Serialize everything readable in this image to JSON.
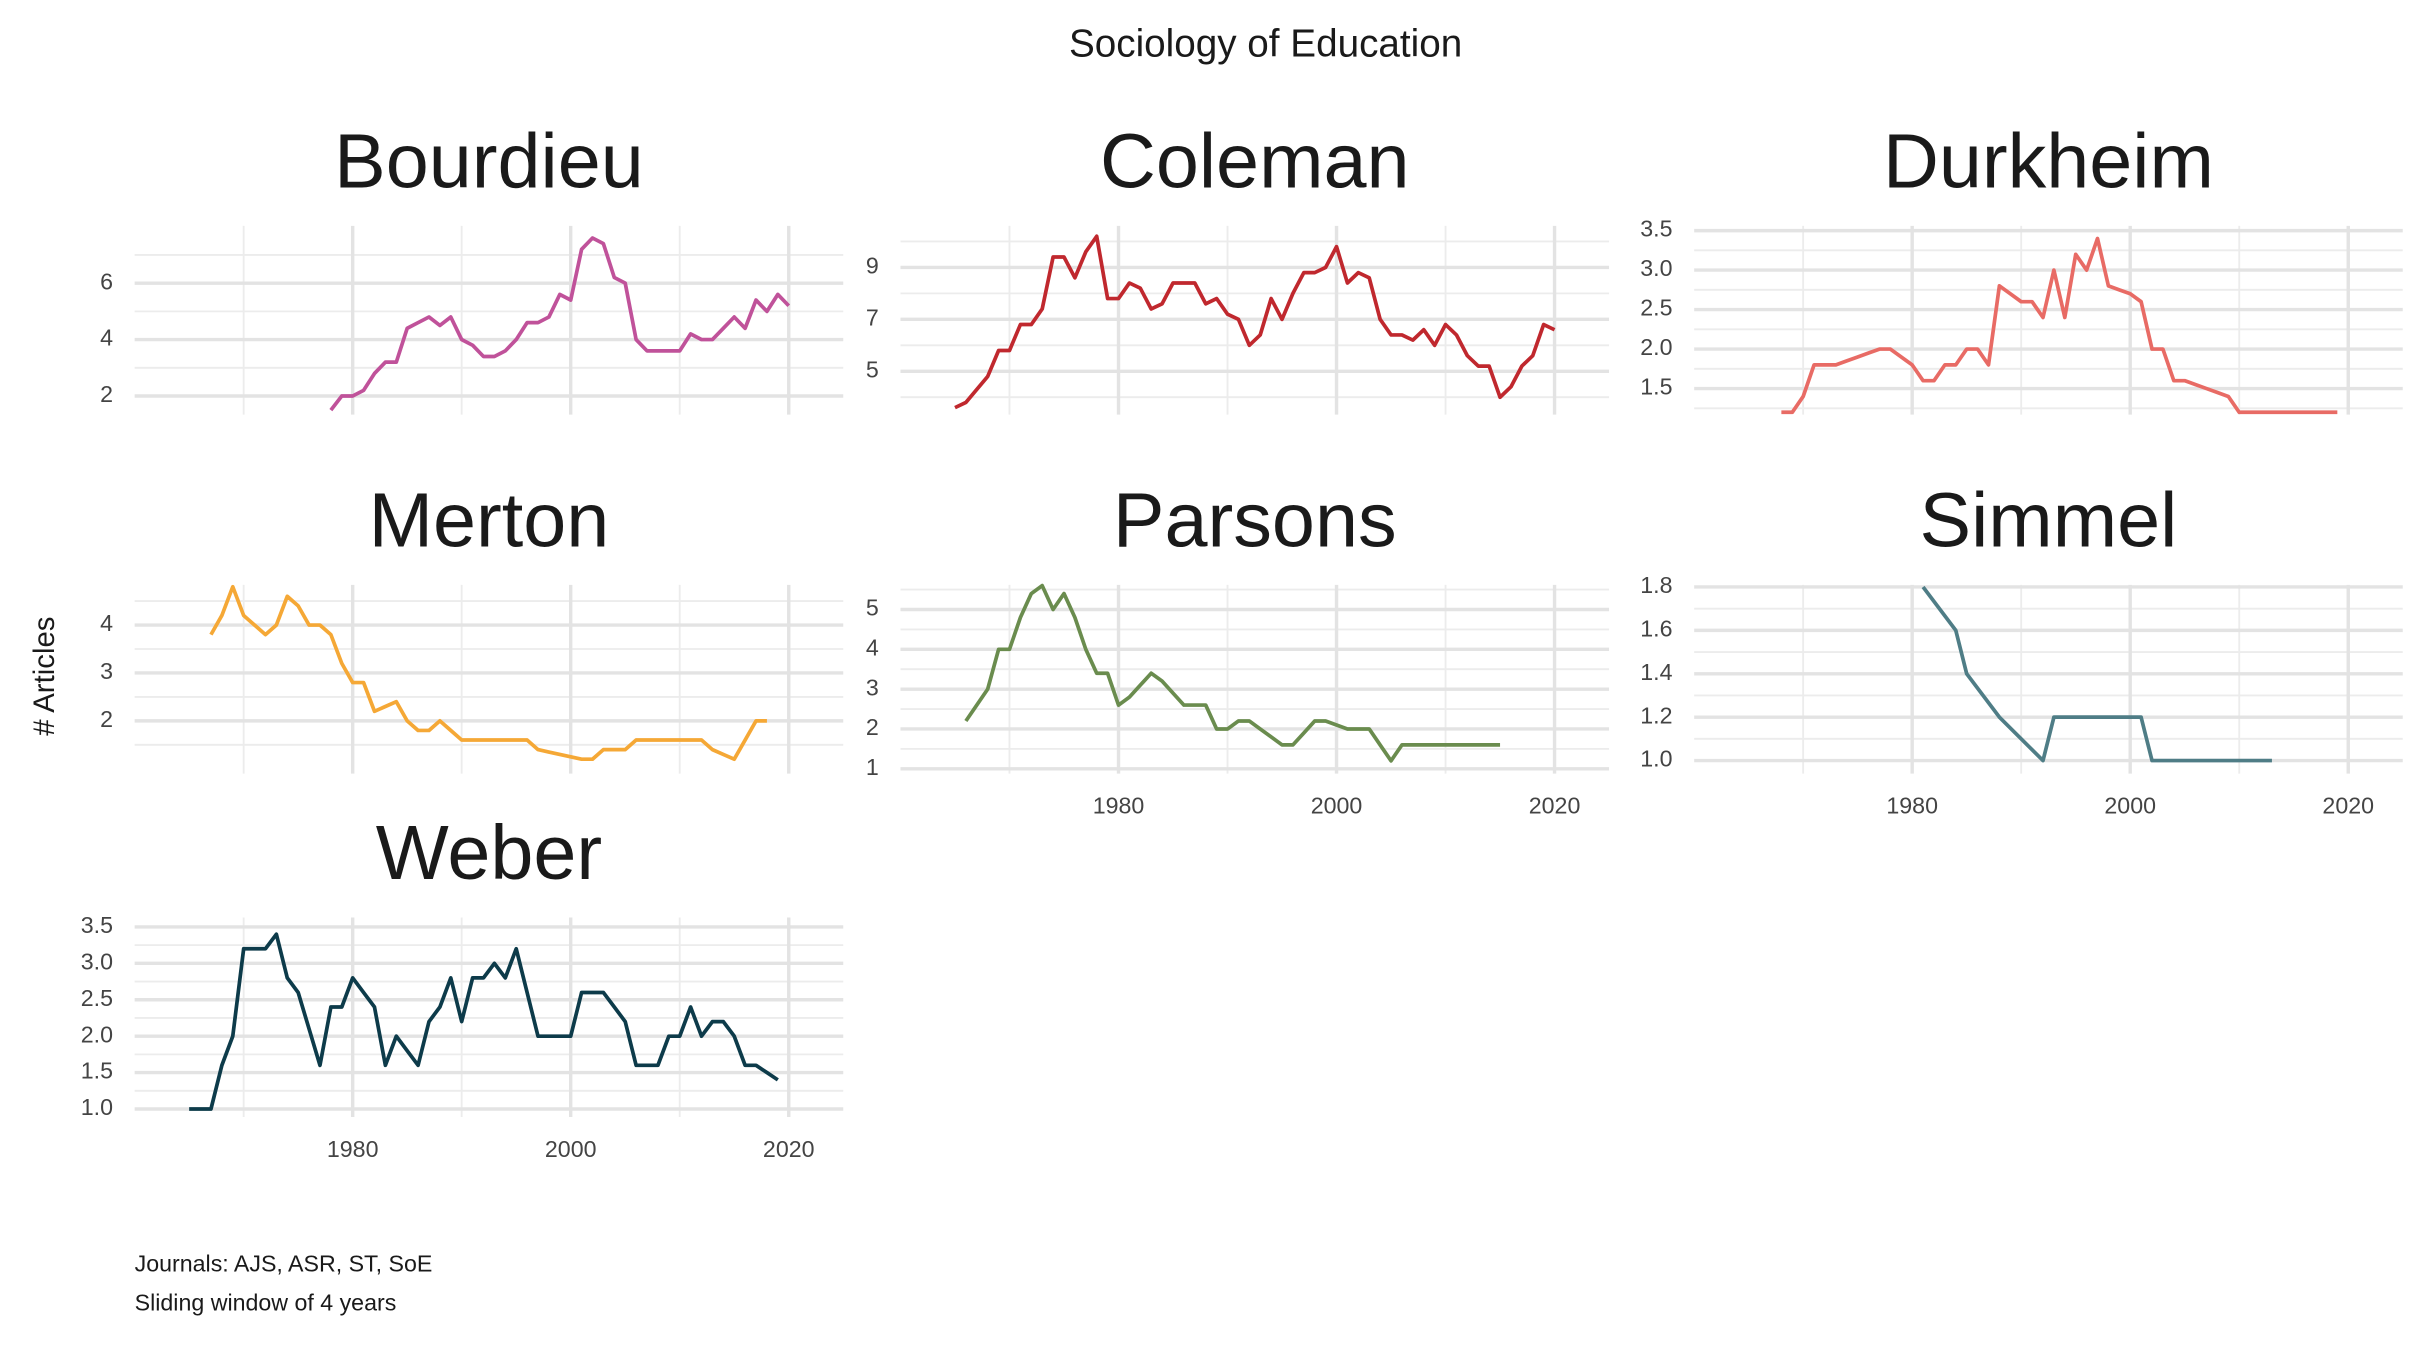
{
  "title": "Sociology of Education",
  "y_label": "# Articles",
  "caption": [
    "Journals: AJS, ASR, ST, SoE",
    "Sliding window of 4 years"
  ],
  "chart_data": [
    {
      "type": "line",
      "title": "Bourdieu",
      "color": "#c0529a",
      "grid": true,
      "x": [
        1978,
        1979,
        1980,
        1981,
        1982,
        1983,
        1984,
        1985,
        1986,
        1987,
        1988,
        1989,
        1990,
        1991,
        1992,
        1993,
        1994,
        1995,
        1996,
        1997,
        1998,
        1999,
        2000,
        2001,
        2002,
        2003,
        2004,
        2005,
        2006,
        2007,
        2008,
        2009,
        2010,
        2011,
        2012,
        2013,
        2014,
        2015,
        2016,
        2017,
        2018,
        2019,
        2020
      ],
      "values": [
        1.5,
        2,
        2,
        2.2,
        2.8,
        3.2,
        3.2,
        4.4,
        4.6,
        4.8,
        4.5,
        4.8,
        4,
        3.8,
        3.4,
        3.4,
        3.6,
        4,
        4.6,
        4.6,
        4.8,
        5.6,
        5.4,
        7.2,
        7.6,
        7.4,
        6.2,
        6,
        4,
        3.6,
        3.6,
        3.6,
        3.6,
        4.2,
        4,
        4,
        4.4,
        4.8,
        4.4,
        5.4,
        5,
        5.6,
        5.2
      ],
      "xlim": [
        1960,
        2025
      ],
      "ylim": [
        1.34,
        8.03
      ],
      "xticks": [
        1980,
        2000,
        2020
      ],
      "yticks": [
        2,
        4,
        6
      ]
    },
    {
      "type": "line",
      "title": "Coleman",
      "color": "#c0282e",
      "grid": true,
      "x": [
        1965,
        1966,
        1967,
        1968,
        1969,
        1970,
        1971,
        1972,
        1973,
        1974,
        1975,
        1976,
        1977,
        1978,
        1979,
        1980,
        1981,
        1982,
        1983,
        1984,
        1985,
        1986,
        1987,
        1988,
        1989,
        1990,
        1991,
        1992,
        1993,
        1994,
        1995,
        1996,
        1997,
        1998,
        1999,
        2000,
        2001,
        2002,
        2003,
        2004,
        2005,
        2006,
        2007,
        2008,
        2009,
        2010,
        2011,
        2012,
        2013,
        2014,
        2015,
        2016,
        2017,
        2018,
        2019,
        2020
      ],
      "values": [
        3.6,
        3.8,
        4.3,
        4.8,
        5.8,
        5.8,
        6.8,
        6.8,
        7.4,
        9.4,
        9.4,
        8.6,
        9.6,
        10.2,
        7.8,
        7.8,
        8.4,
        8.2,
        7.4,
        7.6,
        8.4,
        8.4,
        8.4,
        7.6,
        7.8,
        7.2,
        7,
        6,
        6.4,
        7.8,
        7,
        8,
        8.8,
        8.8,
        9,
        9.8,
        8.4,
        8.8,
        8.6,
        7,
        6.4,
        6.4,
        6.2,
        6.6,
        6,
        6.8,
        6.4,
        5.6,
        5.2,
        5.2,
        4,
        4.4,
        5.2,
        5.6,
        6.8,
        6.6
      ],
      "xlim": [
        1960,
        2025
      ],
      "ylim": [
        3.33,
        10.6
      ],
      "xticks": [
        1980,
        2000,
        2020
      ],
      "yticks": [
        5,
        7,
        9
      ]
    },
    {
      "type": "line",
      "title": "Durkheim",
      "color": "#e86b65",
      "grid": true,
      "x": [
        1968,
        1969,
        1970,
        1971,
        1972,
        1973,
        1974,
        1975,
        1976,
        1977,
        1978,
        1979,
        1980,
        1981,
        1982,
        1983,
        1984,
        1985,
        1986,
        1987,
        1988,
        1989,
        1990,
        1991,
        1992,
        1993,
        1994,
        1995,
        1996,
        1997,
        1998,
        1999,
        2000,
        2001,
        2002,
        2003,
        2004,
        2005,
        2006,
        2007,
        2008,
        2009,
        2010,
        2011,
        2012,
        2013,
        2014,
        2015,
        2016,
        2017,
        2018,
        2019
      ],
      "values": [
        1.2,
        1.2,
        1.4,
        1.8,
        1.8,
        1.8,
        1.85,
        1.9,
        1.95,
        2,
        2,
        1.9,
        1.8,
        1.6,
        1.6,
        1.8,
        1.8,
        2,
        2,
        1.8,
        2.8,
        2.7,
        2.6,
        2.6,
        2.4,
        3,
        2.4,
        3.2,
        3,
        3.4,
        2.8,
        2.75,
        2.7,
        2.6,
        2,
        2,
        1.6,
        1.6,
        1.55,
        1.5,
        1.45,
        1.4,
        1.2,
        1.2,
        1.2,
        1.2,
        1.2,
        1.2,
        1.2,
        1.2,
        1.2,
        1.2
      ],
      "xlim": [
        1960,
        2025
      ],
      "ylim": [
        1.17,
        3.56
      ],
      "xticks": [
        1980,
        2000,
        2020
      ],
      "yticks": [
        1.5,
        {
          "value": 2,
          "label": "2.0"
        },
        2.5,
        {
          "value": 3,
          "label": "3.0"
        },
        3.5
      ]
    },
    {
      "type": "line",
      "title": "Merton",
      "color": "#f5a836",
      "grid": true,
      "x": [
        1967,
        1968,
        1969,
        1970,
        1971,
        1972,
        1973,
        1974,
        1975,
        1976,
        1977,
        1978,
        1979,
        1980,
        1981,
        1982,
        1983,
        1984,
        1985,
        1986,
        1987,
        1988,
        1989,
        1990,
        1991,
        1992,
        1993,
        1994,
        1995,
        1996,
        1997,
        1998,
        1999,
        2000,
        2001,
        2002,
        2003,
        2004,
        2005,
        2006,
        2007,
        2008,
        2009,
        2010,
        2011,
        2012,
        2013,
        2014,
        2015,
        2016,
        2017,
        2018
      ],
      "values": [
        3.8,
        4.2,
        4.8,
        4.2,
        4,
        3.8,
        4,
        4.6,
        4.4,
        4,
        4,
        3.8,
        3.2,
        2.8,
        2.8,
        2.2,
        2.3,
        2.4,
        2,
        1.8,
        1.8,
        2,
        1.8,
        1.6,
        1.6,
        1.6,
        1.6,
        1.6,
        1.6,
        1.6,
        1.4,
        1.35,
        1.3,
        1.25,
        1.2,
        1.2,
        1.4,
        1.4,
        1.4,
        1.6,
        1.6,
        1.6,
        1.6,
        1.6,
        1.6,
        1.6,
        1.4,
        1.3,
        1.2,
        1.6,
        2,
        2
      ],
      "xlim": [
        1960,
        2025
      ],
      "ylim": [
        0.9,
        4.84
      ],
      "xticks": [
        1980,
        2000,
        2020
      ],
      "yticks": [
        2,
        3,
        4
      ]
    },
    {
      "type": "line",
      "title": "Parsons",
      "color": "#6a8c4e",
      "grid": true,
      "x": [
        1966,
        1967,
        1968,
        1969,
        1970,
        1971,
        1972,
        1973,
        1974,
        1975,
        1976,
        1977,
        1978,
        1979,
        1980,
        1981,
        1982,
        1983,
        1984,
        1985,
        1986,
        1987,
        1988,
        1989,
        1990,
        1991,
        1992,
        1993,
        1994,
        1995,
        1996,
        1997,
        1998,
        1999,
        2000,
        2001,
        2002,
        2003,
        2004,
        2005,
        2006,
        2007,
        2008,
        2009,
        2010,
        2011,
        2012,
        2013,
        2014,
        2015
      ],
      "values": [
        2.2,
        2.6,
        3,
        4,
        4,
        4.8,
        5.4,
        5.6,
        5,
        5.4,
        4.8,
        4,
        3.4,
        3.4,
        2.6,
        2.8,
        3.1,
        3.4,
        3.2,
        2.9,
        2.6,
        2.6,
        2.6,
        2,
        2,
        2.2,
        2.2,
        2,
        1.8,
        1.6,
        1.6,
        1.9,
        2.2,
        2.2,
        2.1,
        2,
        2,
        2,
        1.6,
        1.2,
        1.6,
        1.6,
        1.6,
        1.6,
        1.6,
        1.6,
        1.6,
        1.6,
        1.6,
        1.6
      ],
      "xlim": [
        1960,
        2025
      ],
      "ylim": [
        0.88,
        5.62
      ],
      "xticks": [
        1980,
        2000,
        2020
      ],
      "yticks": [
        1,
        2,
        3,
        4,
        5
      ]
    },
    {
      "type": "line",
      "title": "Simmel",
      "color": "#4f7d86",
      "grid": true,
      "x": [
        1981,
        1984,
        1985,
        1988,
        1992,
        1993,
        2001,
        2002,
        2013
      ],
      "values": [
        1.8,
        1.6,
        1.4,
        1.2,
        1.0,
        1.2,
        1.2,
        1.0,
        1.0
      ],
      "xlim": [
        1960,
        2025
      ],
      "ylim": [
        0.94,
        1.81
      ],
      "xticks": [
        1980,
        2000,
        2020
      ],
      "yticks": [
        {
          "value": 1,
          "label": "1.0"
        },
        1.2,
        1.4,
        1.6,
        1.8
      ]
    },
    {
      "type": "line",
      "title": "Weber",
      "color": "#0d3b4a",
      "grid": true,
      "x": [
        1965,
        1966,
        1967,
        1968,
        1969,
        1970,
        1971,
        1972,
        1973,
        1974,
        1975,
        1976,
        1977,
        1978,
        1979,
        1980,
        1981,
        1982,
        1983,
        1984,
        1985,
        1986,
        1987,
        1988,
        1989,
        1990,
        1991,
        1992,
        1993,
        1994,
        1995,
        1996,
        1997,
        1998,
        1999,
        2000,
        2001,
        2002,
        2003,
        2004,
        2005,
        2006,
        2007,
        2008,
        2009,
        2010,
        2011,
        2012,
        2013,
        2014,
        2015,
        2016,
        2017,
        2018,
        2019
      ],
      "values": [
        1,
        1,
        1,
        1.6,
        2,
        3.2,
        3.2,
        3.2,
        3.4,
        2.8,
        2.6,
        2.1,
        1.6,
        2.4,
        2.4,
        2.8,
        2.6,
        2.4,
        1.6,
        2,
        1.8,
        1.6,
        2.2,
        2.4,
        2.8,
        2.2,
        2.8,
        2.8,
        3,
        2.8,
        3.2,
        2.6,
        2,
        2,
        2,
        2,
        2.6,
        2.6,
        2.6,
        2.4,
        2.2,
        1.6,
        1.6,
        1.6,
        2,
        2,
        2.4,
        2,
        2.2,
        2.2,
        2,
        1.6,
        1.6,
        1.5,
        1.4
      ],
      "xlim": [
        1960,
        2025
      ],
      "ylim": [
        0.89,
        3.63
      ],
      "xticks": [
        1980,
        2000,
        2020
      ],
      "yticks": [
        {
          "value": 1,
          "label": "1.0"
        },
        1.5,
        {
          "value": 2,
          "label": "2.0"
        },
        2.5,
        {
          "value": 3,
          "label": "3.0"
        },
        3.5
      ]
    }
  ]
}
